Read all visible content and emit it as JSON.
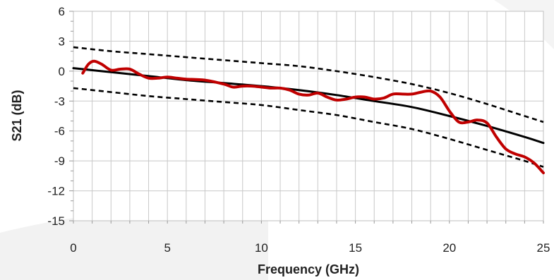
{
  "chart_data": {
    "type": "line",
    "title": "",
    "xlabel": "Frequency (GHz)",
    "ylabel": "S21 (dB)",
    "xlim": [
      0,
      25
    ],
    "ylim": [
      -15,
      6
    ],
    "xticks": [
      0,
      5,
      10,
      15,
      20,
      25
    ],
    "yticks": [
      6,
      3,
      0,
      -3,
      -6,
      -9,
      -12,
      -15
    ],
    "x_minor_step": 1,
    "y_minor_step": 1,
    "grid": true,
    "legend": "none",
    "colors": {
      "measured": "#c00000",
      "limits": "#000000",
      "grid": "#c8c8c8",
      "background_band": "#f2f2f2"
    },
    "series": [
      {
        "style": "solid-thick",
        "color": "#c00000",
        "x": [
          0.5,
          0.8,
          1.1,
          1.5,
          2.0,
          2.5,
          3.0,
          3.5,
          4.0,
          4.5,
          5.0,
          5.5,
          6.0,
          7.0,
          8.0,
          8.5,
          9.0,
          9.5,
          10.0,
          10.5,
          11.0,
          11.5,
          12.0,
          12.5,
          13.0,
          13.5,
          14.0,
          14.5,
          15.0,
          15.5,
          16.0,
          16.5,
          17.0,
          17.5,
          18.0,
          18.5,
          19.0,
          19.5,
          20.0,
          20.5,
          21.0,
          21.5,
          22.0,
          22.5,
          23.0,
          23.5,
          24.0,
          24.5,
          25.0
        ],
        "y": [
          -0.2,
          0.7,
          1.0,
          0.7,
          0.1,
          0.2,
          0.2,
          -0.3,
          -0.7,
          -0.7,
          -0.6,
          -0.7,
          -0.8,
          -0.9,
          -1.3,
          -1.6,
          -1.5,
          -1.5,
          -1.6,
          -1.7,
          -1.7,
          -1.9,
          -2.3,
          -2.4,
          -2.2,
          -2.6,
          -2.9,
          -2.8,
          -2.6,
          -2.6,
          -2.8,
          -2.7,
          -2.3,
          -2.3,
          -2.3,
          -2.1,
          -2.0,
          -2.6,
          -4.0,
          -5.1,
          -5.1,
          -4.9,
          -5.2,
          -6.6,
          -7.8,
          -8.3,
          -8.6,
          -9.2,
          -10.2
        ]
      },
      {
        "style": "solid",
        "color": "#000000",
        "x": [
          0,
          2,
          4,
          6,
          8,
          10,
          12,
          14,
          16,
          18,
          20,
          22,
          24,
          25
        ],
        "y": [
          0.3,
          -0.1,
          -0.5,
          -0.9,
          -1.2,
          -1.5,
          -1.9,
          -2.4,
          -3.0,
          -3.6,
          -4.5,
          -5.5,
          -6.6,
          -7.2
        ]
      },
      {
        "style": "dashed",
        "color": "#000000",
        "x": [
          0,
          2,
          4,
          6,
          8,
          10,
          12,
          14,
          16,
          18,
          20,
          22,
          24,
          25
        ],
        "y": [
          2.4,
          2.0,
          1.7,
          1.4,
          1.1,
          0.8,
          0.5,
          0.0,
          -0.6,
          -1.3,
          -2.2,
          -3.3,
          -4.5,
          -5.1
        ]
      },
      {
        "style": "dashed",
        "color": "#000000",
        "x": [
          0,
          2,
          4,
          6,
          8,
          10,
          12,
          14,
          16,
          18,
          20,
          22,
          24,
          25
        ],
        "y": [
          -1.7,
          -2.1,
          -2.5,
          -2.8,
          -3.1,
          -3.4,
          -3.9,
          -4.4,
          -5.1,
          -5.8,
          -6.8,
          -7.9,
          -9.0,
          -9.6
        ]
      }
    ]
  }
}
